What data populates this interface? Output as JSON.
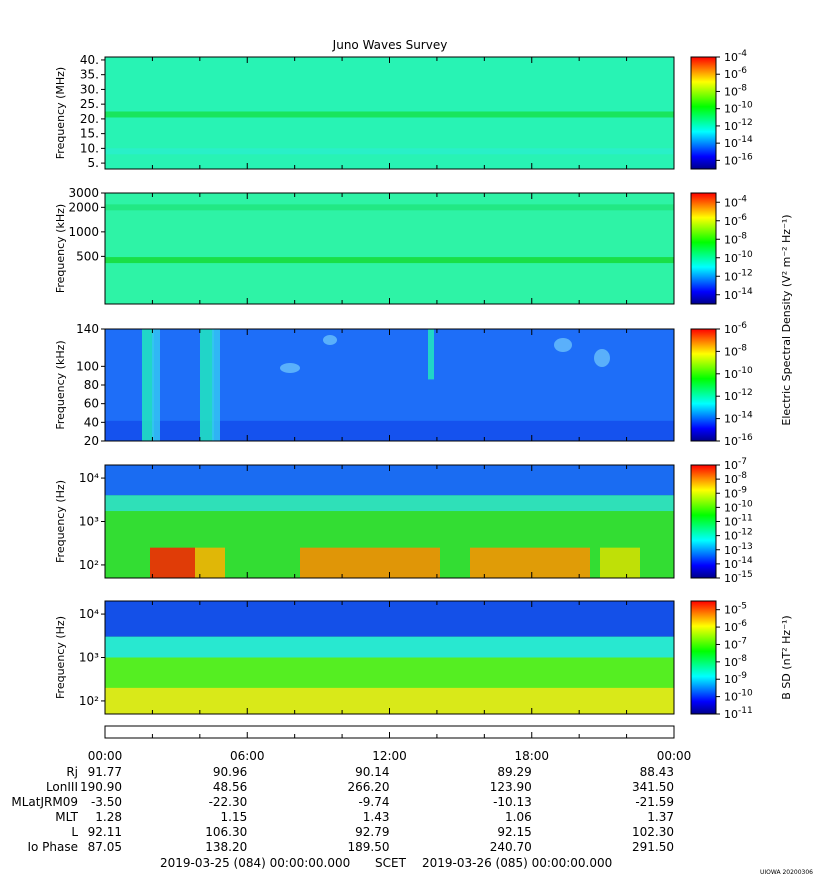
{
  "title": "Juno Waves Survey",
  "footer": {
    "start": "2019-03-25 (084) 00:00:00.000",
    "mid": "SCET",
    "end": "2019-03-26 (085) 00:00:00.000",
    "stamp": "UIOWA 20200306"
  },
  "colors": {
    "colormap": [
      "#00008b",
      "#0000ff",
      "#0080ff",
      "#00ffff",
      "#00ff80",
      "#00ff00",
      "#80ff00",
      "#ffff00",
      "#ff8000",
      "#ff0000"
    ]
  },
  "chart_data": [
    {
      "type": "heatmap",
      "panel": "high-frequency",
      "ylabel": "Frequency (MHz)",
      "ylim": [
        3,
        41
      ],
      "yscale": "linear",
      "yticks": [
        "40.",
        "35.",
        "30.",
        "25.",
        "20.",
        "15.",
        "10.",
        "5."
      ],
      "ytick_values": [
        40,
        35,
        30,
        25,
        20,
        15,
        10,
        5
      ],
      "colorbar_ticks": [
        "-4",
        "-6",
        "-8",
        "-10",
        "-12",
        "-14",
        "-16"
      ],
      "colorbar_exp": [
        -4,
        -6,
        -8,
        -10,
        -12,
        -14,
        -16
      ],
      "colorbar_range": [
        -17,
        -4
      ],
      "colorbar_label": "",
      "background": "#28f3b4",
      "bands": [
        {
          "y": 21.5,
          "color": "#19e55c"
        },
        {
          "y": 9,
          "color": "#29f0c8"
        }
      ]
    },
    {
      "type": "heatmap",
      "panel": "medium-frequency",
      "ylabel": "Frequency (kHz)",
      "ylim": [
        130,
        3000
      ],
      "yscale": "log",
      "yticks": [
        "3000",
        "2000",
        "1000",
        "500"
      ],
      "ytick_values": [
        3000,
        2000,
        1000,
        500
      ],
      "colorbar_ticks": [
        "-4",
        "-6",
        "-8",
        "-10",
        "-12",
        "-14"
      ],
      "colorbar_exp": [
        -4,
        -6,
        -8,
        -10,
        -12,
        -14
      ],
      "colorbar_range": [
        -15,
        -3
      ],
      "colorbar_label": "Electric Spectral Density (V² m⁻² Hz⁻¹)",
      "background": "#2ef3a6",
      "bands": [
        {
          "y": 450,
          "color": "#19df48"
        },
        {
          "y": 2000,
          "color": "#22e884"
        }
      ]
    },
    {
      "type": "heatmap",
      "panel": "low-frequency",
      "ylabel": "Frequency (kHz)",
      "ylim": [
        20,
        140
      ],
      "yscale": "linear",
      "yticks": [
        "140",
        "100",
        "80",
        "60",
        "40",
        "20"
      ],
      "ytick_values": [
        140,
        100,
        80,
        60,
        40,
        20
      ],
      "colorbar_ticks": [
        "-6",
        "-8",
        "-10",
        "-12",
        "-14",
        "-16"
      ],
      "colorbar_exp": [
        -6,
        -8,
        -10,
        -12,
        -14,
        -16
      ],
      "colorbar_range": [
        -16,
        -6
      ],
      "colorbar_label": "",
      "background": "#1e6ef8",
      "bands": []
    },
    {
      "type": "heatmap",
      "panel": "waveform-electric",
      "ylabel": "Frequency (Hz)",
      "ylim": [
        50,
        20000
      ],
      "yscale": "log",
      "yticks": [
        "10⁴",
        "10³",
        "10²"
      ],
      "ytick_values": [
        10000,
        1000,
        100
      ],
      "colorbar_ticks": [
        "-7",
        "-8",
        "-9",
        "-10",
        "-11",
        "-12",
        "-13",
        "-14",
        "-15"
      ],
      "colorbar_exp": [
        -7,
        -8,
        -9,
        -10,
        -11,
        -12,
        -13,
        -14,
        -15
      ],
      "colorbar_range": [
        -15,
        -7
      ],
      "colorbar_label": "",
      "background": "#33dd33",
      "bands": []
    },
    {
      "type": "heatmap",
      "panel": "waveform-magnetic",
      "ylabel": "Frequency (Hz)",
      "ylim": [
        50,
        20000
      ],
      "yscale": "log",
      "yticks": [
        "10⁴",
        "10³",
        "10²"
      ],
      "ytick_values": [
        10000,
        1000,
        100
      ],
      "colorbar_ticks": [
        "-5",
        "-6",
        "-7",
        "-8",
        "-9",
        "-10",
        "-11"
      ],
      "colorbar_exp": [
        -5,
        -6,
        -7,
        -8,
        -9,
        -10,
        -11
      ],
      "colorbar_range": [
        -11,
        -4.5
      ],
      "colorbar_label": "B SD (nT² Hz⁻¹)",
      "background": "#55ee22",
      "bands": []
    }
  ],
  "ephemeris": {
    "time_labels": [
      "00:00",
      "06:00",
      "12:00",
      "18:00",
      "00:00"
    ],
    "rows": [
      {
        "label": "Rj",
        "values": [
          "91.77",
          "90.96",
          "90.14",
          "89.29",
          "88.43"
        ]
      },
      {
        "label": "LonIII",
        "values": [
          "190.90",
          "48.56",
          "266.20",
          "123.90",
          "341.50"
        ]
      },
      {
        "label": "MLatJRM09",
        "values": [
          "-3.50",
          "-22.30",
          "-9.74",
          "-10.13",
          "-21.59"
        ]
      },
      {
        "label": "MLT",
        "values": [
          "1.28",
          "1.15",
          "1.43",
          "1.06",
          "1.37"
        ]
      },
      {
        "label": "L",
        "values": [
          "92.11",
          "106.30",
          "92.79",
          "92.15",
          "102.30"
        ]
      },
      {
        "label": "Io Phase",
        "values": [
          "87.05",
          "138.20",
          "189.50",
          "240.70",
          "291.50"
        ]
      }
    ]
  }
}
